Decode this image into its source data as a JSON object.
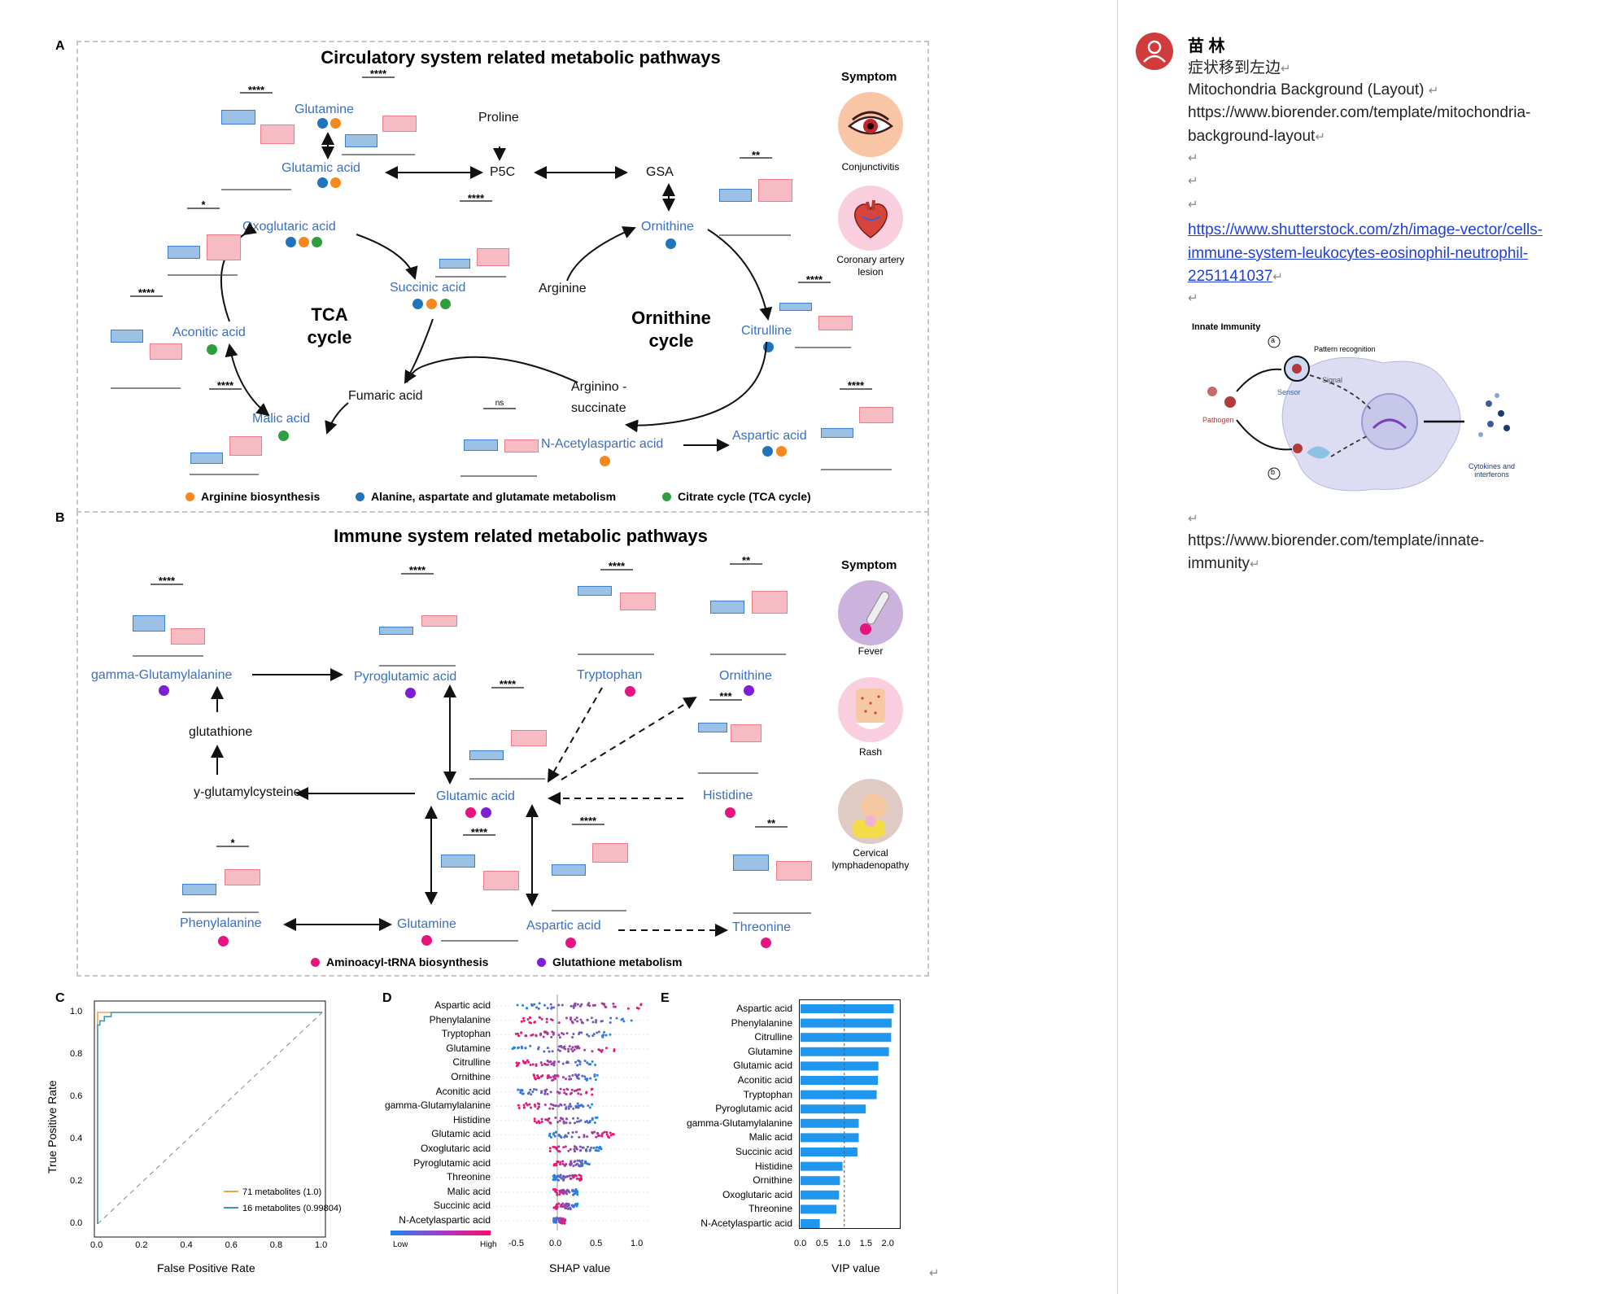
{
  "panels": {
    "a": {
      "letter": "A",
      "title": "Circulatory system related metabolic pathways",
      "tca": "TCA\ncycle",
      "orn": "Ornithine\ncycle",
      "nodes": {
        "glutamine": "Glutamine",
        "glutamic": "Glutamic acid",
        "proline": "Proline",
        "p5c": "P5C",
        "gsa": "GSA",
        "oxoglutaric": "Oxoglutaric acid",
        "succinic": "Succinic acid",
        "ornithine": "Ornithine",
        "arginine": "Arginine",
        "aconitic": "Aconitic acid",
        "citrulline": "Citrulline",
        "fumaric": "Fumaric acid",
        "argsucc1": "Arginino -",
        "argsucc2": "succinate",
        "malic": "Malic acid",
        "nacetyl": "N-Acetylaspartic acid",
        "aspartic": "Aspartic acid"
      },
      "sig": {
        "glutamine": "****",
        "glutamic": "****",
        "oxoglutaric": "*",
        "succinic": "****",
        "aconitic": "****",
        "malic": "****",
        "nacetyl": "ns",
        "ornithine": "**",
        "citrulline": "****",
        "aspartic": "****"
      },
      "legend": {
        "arg": "Arginine biosynthesis",
        "ala": "Alanine, aspartate and glutamate metabolism",
        "tca": "Citrate cycle (TCA cycle)"
      },
      "symptom_title": "Symptom",
      "symptoms": [
        "Conjunctivitis",
        "Coronary artery\nlesion"
      ]
    },
    "b": {
      "letter": "B",
      "title": "Immune system related metabolic pathways",
      "nodes": {
        "gglu": "gamma-Glutamylalanine",
        "pyro": "Pyroglutamic acid",
        "trp": "Tryptophan",
        "orn": "Ornithine",
        "gsh": "glutathione",
        "ygc": "y-glutamylcysteine",
        "glu": "Glutamic acid",
        "his": "Histidine",
        "phe": "Phenylalanine",
        "gln": "Glutamine",
        "asp": "Aspartic acid",
        "thr": "Threonine"
      },
      "sig": {
        "gglu": "****",
        "pyro": "****",
        "trp": "****",
        "orn": "**",
        "glu": "****",
        "his": "***",
        "phe": "*",
        "gln": "****",
        "asp": "****",
        "thr": "**"
      },
      "legend": {
        "trna": "Aminoacyl-tRNA biosynthesis",
        "gsh": "Glutathione metabolism"
      },
      "symptom_title": "Symptom",
      "symptoms": [
        "Fever",
        "Rash",
        "Cervical\nlymphadenopathy"
      ]
    },
    "c": {
      "letter": "C",
      "xlabel": "False Positive Rate",
      "ylabel": "True Positive Rate",
      "xticks": [
        "0.0",
        "0.2",
        "0.4",
        "0.6",
        "0.8",
        "1.0"
      ],
      "yticks": [
        "0.0",
        "0.2",
        "0.4",
        "0.6",
        "0.8",
        "1.0"
      ],
      "legend": [
        "71 metabolites (1.0)",
        "16 metabolites (0.99804)"
      ]
    },
    "d": {
      "letter": "D",
      "xlabel": "SHAP value",
      "xticks": [
        "-0.5",
        "0.0",
        "0.5",
        "1.0"
      ],
      "low": "Low",
      "high": "High"
    },
    "e": {
      "letter": "E",
      "xlabel": "VIP value",
      "xticks": [
        "0.0",
        "0.5",
        "1.0",
        "1.5",
        "2.0"
      ]
    }
  },
  "chart_data": [
    {
      "type": "line",
      "title": "",
      "xlabel": "False Positive Rate",
      "ylabel": "True Positive Rate",
      "xlim": [
        0,
        1
      ],
      "ylim": [
        0,
        1
      ],
      "series": [
        {
          "name": "71 metabolites (1.0)",
          "color": "#f5a340",
          "x": [
            0,
            0,
            1
          ],
          "y": [
            0,
            1,
            1
          ]
        },
        {
          "name": "16 metabolites (0.99804)",
          "color": "#3e97b5",
          "x": [
            0,
            0,
            0.01,
            0.01,
            0.03,
            0.03,
            0.06,
            0.06,
            1
          ],
          "y": [
            0,
            0.94,
            0.94,
            0.96,
            0.96,
            0.98,
            0.98,
            1,
            1
          ]
        }
      ]
    },
    {
      "type": "scatter",
      "title": "",
      "xlabel": "SHAP value",
      "xlim": [
        -0.75,
        1.15
      ],
      "features": [
        "Aspartic acid",
        "Phenylalanine",
        "Tryptophan",
        "Glutamine",
        "Citrulline",
        "Ornithine",
        "Aconitic acid",
        "gamma-Glutamylalanine",
        "Histidine",
        "Glutamic acid",
        "Oxoglutaric acid",
        "Pyroglutamic acid",
        "Threonine",
        "Malic acid",
        "Succinic acid",
        "N-Acetylaspartic acid"
      ],
      "spread": [
        [
          -0.5,
          1.1
        ],
        [
          -0.45,
          0.95
        ],
        [
          -0.55,
          0.7
        ],
        [
          -0.55,
          0.75
        ],
        [
          -0.5,
          0.5
        ],
        [
          -0.3,
          0.5
        ],
        [
          -0.55,
          0.45
        ],
        [
          -0.5,
          0.45
        ],
        [
          -0.3,
          0.5
        ],
        [
          -0.1,
          0.7
        ],
        [
          -0.1,
          0.55
        ],
        [
          -0.05,
          0.4
        ],
        [
          -0.05,
          0.3
        ],
        [
          -0.05,
          0.25
        ],
        [
          -0.05,
          0.25
        ],
        [
          -0.05,
          0.1
        ]
      ]
    },
    {
      "type": "bar",
      "title": "",
      "xlabel": "VIP value",
      "xlim": [
        0,
        2.25
      ],
      "categories": [
        "Aspartic acid",
        "Phenylalanine",
        "Citrulline",
        "Glutamine",
        "Glutamic acid",
        "Aconitic acid",
        "Tryptophan",
        "Pyroglutamic acid",
        "gamma-Glutamylalanine",
        "Malic acid",
        "Succinic acid",
        "Histidine",
        "Ornithine",
        "Oxoglutaric acid",
        "Threonine",
        "N-Acetylaspartic acid"
      ],
      "values": [
        2.13,
        2.08,
        2.07,
        2.02,
        1.78,
        1.77,
        1.74,
        1.49,
        1.33,
        1.33,
        1.3,
        0.96,
        0.9,
        0.88,
        0.82,
        0.44
      ],
      "threshold": 1.0,
      "color": "#1f97ef"
    }
  ],
  "comment": {
    "author": "苗 林",
    "lines": [
      "症状移到左边",
      "Mitochondria Background (Layout)",
      "https://www.biorender.com/template/mitochondria-",
      "background-layout"
    ],
    "link": [
      "https://www.shutterstock.com/zh/image-vector/cells-",
      "immune-system-leukocytes-eosinophil-neutrophil-",
      "2251141037"
    ],
    "figure": {
      "title": "Innate Immunity",
      "pattern": "Pattern recognition",
      "sensor": "Sensor",
      "signal": "Signal",
      "pathogen": "Pathogen",
      "cytokines": "Cytokines and\ninterferons",
      "a": "a",
      "b": "b"
    },
    "bottom": [
      "https://www.biorender.com/template/innate-",
      "immunity"
    ],
    "return_mark": "↵"
  },
  "colors": {
    "blue_box": "#3b80c6",
    "pink_box": "#ee7e8c",
    "blue_text": "#3b6fc0",
    "dot_blue": "#1f74bb",
    "dot_orange": "#f5891f",
    "dot_green": "#2e9e3f",
    "dot_pink": "#e5147f",
    "dot_purple": "#7d1fd6"
  }
}
